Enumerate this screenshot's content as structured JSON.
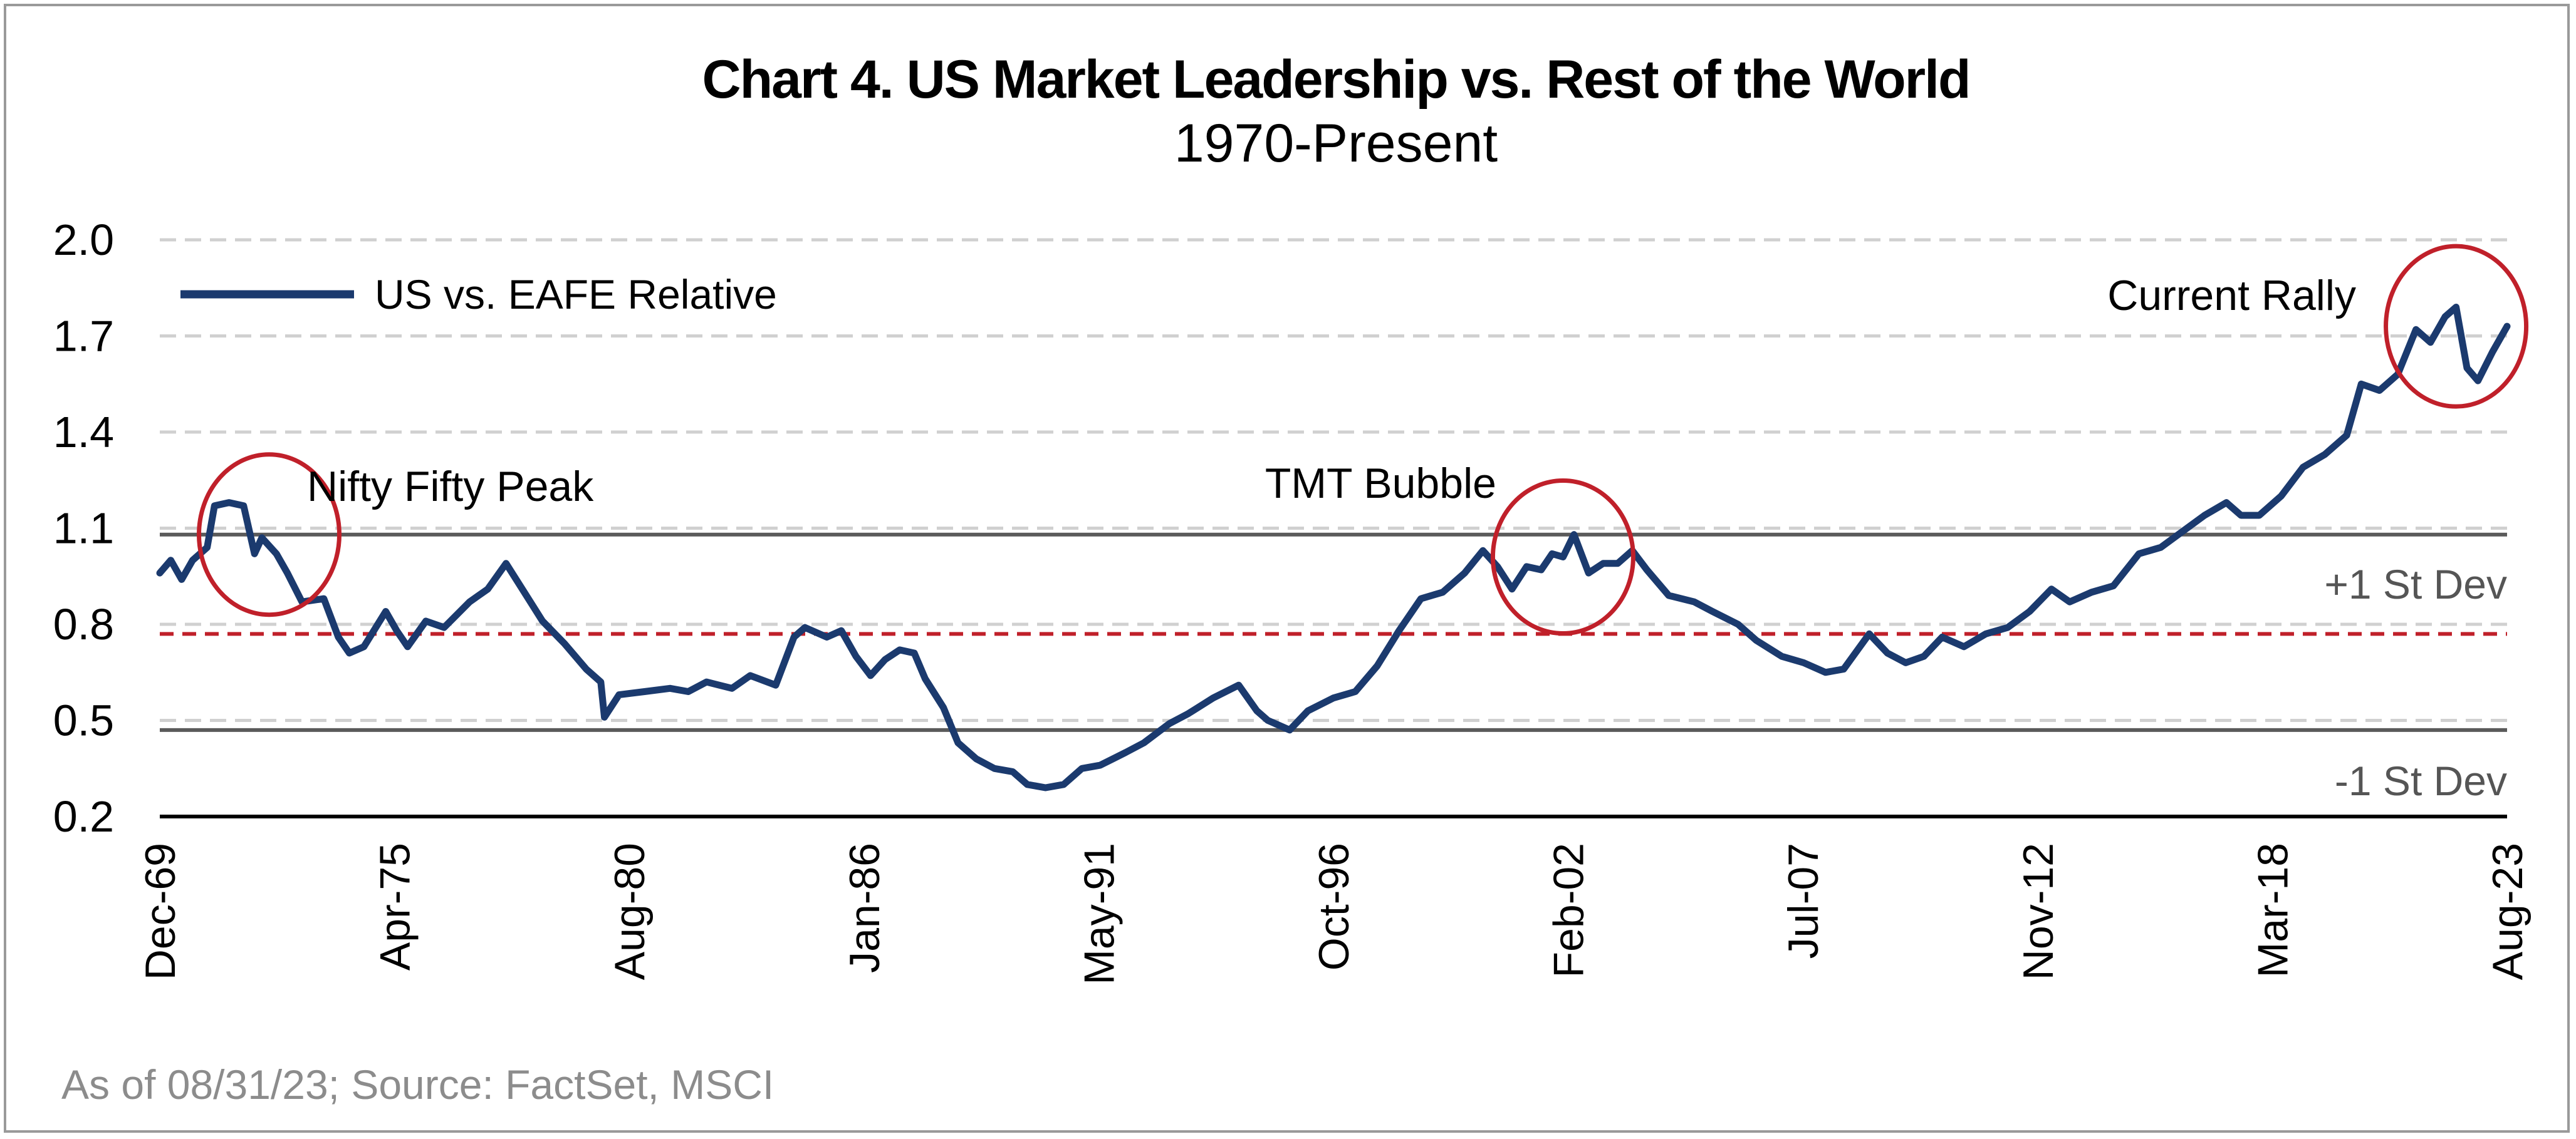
{
  "chart_data": {
    "type": "line",
    "title": "Chart 4. US Market Leadership vs. Rest of the World",
    "subtitle": "1970-Present",
    "source": "As of 08/31/23; Source: FactSet, MSCI",
    "ylim": [
      0.2,
      2.0
    ],
    "yticks": [
      "2.0",
      "1.7",
      "1.4",
      "1.1",
      "0.8",
      "0.5",
      "0.2"
    ],
    "xlim": [
      "1969-12",
      "2023-08"
    ],
    "xtick_labels": [
      "Dec-69",
      "Apr-75",
      "Aug-80",
      "Jan-86",
      "May-91",
      "Oct-96",
      "Feb-02",
      "Jul-07",
      "Nov-12",
      "Mar-18",
      "Aug-23"
    ],
    "grid": "horizontal dashed",
    "legend": {
      "position": "top-left",
      "entries": [
        "US vs. EAFE Relative"
      ]
    },
    "colors": {
      "series": "#1b3a6e",
      "mean_line": "#c0202a",
      "stdev_line": "#5a5a5a",
      "circle": "#c0202a",
      "grid": "#d0d0d0"
    },
    "reference_lines": [
      {
        "label": "+1 St Dev",
        "value": 1.08,
        "style": "solid"
      },
      {
        "label": "",
        "value": 0.77,
        "style": "dashed"
      },
      {
        "label": "-1 St Dev",
        "value": 0.47,
        "style": "solid"
      }
    ],
    "annotations": [
      {
        "text": "Nifty Fifty Peak",
        "date": "1972-06",
        "value": 1.08
      },
      {
        "text": "TMT Bubble",
        "date": "2002-01",
        "value": 1.01
      },
      {
        "text": "Current Rally",
        "date": "2022-06",
        "value": 1.73
      }
    ],
    "series": [
      {
        "name": "US vs. EAFE Relative",
        "points": [
          [
            "1969-12",
            0.96
          ],
          [
            "1970-03",
            1.0
          ],
          [
            "1970-06",
            0.94
          ],
          [
            "1970-09",
            1.0
          ],
          [
            "1971-01",
            1.04
          ],
          [
            "1971-03",
            1.17
          ],
          [
            "1971-07",
            1.18
          ],
          [
            "1971-11",
            1.17
          ],
          [
            "1972-02",
            1.02
          ],
          [
            "1972-04",
            1.07
          ],
          [
            "1972-08",
            1.02
          ],
          [
            "1972-11",
            0.96
          ],
          [
            "1973-03",
            0.87
          ],
          [
            "1973-09",
            0.88
          ],
          [
            "1974-01",
            0.76
          ],
          [
            "1974-04",
            0.71
          ],
          [
            "1974-08",
            0.73
          ],
          [
            "1975-02",
            0.84
          ],
          [
            "1975-05",
            0.78
          ],
          [
            "1975-08",
            0.73
          ],
          [
            "1976-01",
            0.81
          ],
          [
            "1976-06",
            0.79
          ],
          [
            "1977-01",
            0.87
          ],
          [
            "1977-06",
            0.91
          ],
          [
            "1977-11",
            0.99
          ],
          [
            "1978-04",
            0.9
          ],
          [
            "1978-09",
            0.81
          ],
          [
            "1979-03",
            0.74
          ],
          [
            "1979-09",
            0.66
          ],
          [
            "1980-01",
            0.62
          ],
          [
            "1980-02",
            0.51
          ],
          [
            "1980-06",
            0.58
          ],
          [
            "1981-01",
            0.59
          ],
          [
            "1981-08",
            0.6
          ],
          [
            "1982-01",
            0.59
          ],
          [
            "1982-06",
            0.62
          ],
          [
            "1983-01",
            0.6
          ],
          [
            "1983-06",
            0.64
          ],
          [
            "1984-01",
            0.61
          ],
          [
            "1984-06",
            0.76
          ],
          [
            "1984-09",
            0.79
          ],
          [
            "1985-03",
            0.76
          ],
          [
            "1985-07",
            0.78
          ],
          [
            "1985-11",
            0.7
          ],
          [
            "1986-03",
            0.64
          ],
          [
            "1986-07",
            0.69
          ],
          [
            "1986-11",
            0.72
          ],
          [
            "1987-03",
            0.71
          ],
          [
            "1987-06",
            0.63
          ],
          [
            "1987-11",
            0.54
          ],
          [
            "1988-03",
            0.43
          ],
          [
            "1988-08",
            0.38
          ],
          [
            "1989-01",
            0.35
          ],
          [
            "1989-06",
            0.34
          ],
          [
            "1989-10",
            0.3
          ],
          [
            "1990-03",
            0.29
          ],
          [
            "1990-08",
            0.3
          ],
          [
            "1991-01",
            0.35
          ],
          [
            "1991-06",
            0.36
          ],
          [
            "1992-01",
            0.4
          ],
          [
            "1992-06",
            0.43
          ],
          [
            "1993-01",
            0.49
          ],
          [
            "1993-06",
            0.52
          ],
          [
            "1994-01",
            0.57
          ],
          [
            "1994-08",
            0.61
          ],
          [
            "1995-01",
            0.53
          ],
          [
            "1995-04",
            0.5
          ],
          [
            "1995-10",
            0.47
          ],
          [
            "1996-03",
            0.53
          ],
          [
            "1996-10",
            0.57
          ],
          [
            "1997-04",
            0.59
          ],
          [
            "1997-10",
            0.67
          ],
          [
            "1998-04",
            0.78
          ],
          [
            "1998-10",
            0.88
          ],
          [
            "1999-04",
            0.9
          ],
          [
            "1999-10",
            0.96
          ],
          [
            "2000-03",
            1.03
          ],
          [
            "2000-07",
            0.98
          ],
          [
            "2000-11",
            0.91
          ],
          [
            "2001-03",
            0.98
          ],
          [
            "2001-07",
            0.97
          ],
          [
            "2001-10",
            1.02
          ],
          [
            "2002-01",
            1.01
          ],
          [
            "2002-04",
            1.08
          ],
          [
            "2002-08",
            0.96
          ],
          [
            "2002-12",
            0.99
          ],
          [
            "2003-04",
            0.99
          ],
          [
            "2003-08",
            1.03
          ],
          [
            "2003-12",
            0.97
          ],
          [
            "2004-06",
            0.89
          ],
          [
            "2005-01",
            0.87
          ],
          [
            "2005-06",
            0.84
          ],
          [
            "2006-01",
            0.8
          ],
          [
            "2006-06",
            0.75
          ],
          [
            "2007-01",
            0.7
          ],
          [
            "2007-07",
            0.68
          ],
          [
            "2008-01",
            0.65
          ],
          [
            "2008-06",
            0.66
          ],
          [
            "2009-01",
            0.77
          ],
          [
            "2009-06",
            0.71
          ],
          [
            "2009-11",
            0.68
          ],
          [
            "2010-04",
            0.7
          ],
          [
            "2010-09",
            0.76
          ],
          [
            "2011-03",
            0.73
          ],
          [
            "2011-09",
            0.77
          ],
          [
            "2012-03",
            0.79
          ],
          [
            "2012-09",
            0.84
          ],
          [
            "2013-03",
            0.91
          ],
          [
            "2013-08",
            0.87
          ],
          [
            "2014-02",
            0.9
          ],
          [
            "2014-08",
            0.92
          ],
          [
            "2015-03",
            1.02
          ],
          [
            "2015-09",
            1.04
          ],
          [
            "2016-03",
            1.09
          ],
          [
            "2016-09",
            1.14
          ],
          [
            "2017-03",
            1.18
          ],
          [
            "2017-07",
            1.14
          ],
          [
            "2017-12",
            1.14
          ],
          [
            "2018-06",
            1.2
          ],
          [
            "2018-12",
            1.29
          ],
          [
            "2019-06",
            1.33
          ],
          [
            "2019-12",
            1.39
          ],
          [
            "2020-04",
            1.55
          ],
          [
            "2020-09",
            1.53
          ],
          [
            "2021-02",
            1.58
          ],
          [
            "2021-07",
            1.72
          ],
          [
            "2021-11",
            1.68
          ],
          [
            "2022-03",
            1.76
          ],
          [
            "2022-06",
            1.79
          ],
          [
            "2022-09",
            1.6
          ],
          [
            "2022-12",
            1.56
          ],
          [
            "2023-04",
            1.65
          ],
          [
            "2023-08",
            1.73
          ]
        ]
      }
    ]
  }
}
